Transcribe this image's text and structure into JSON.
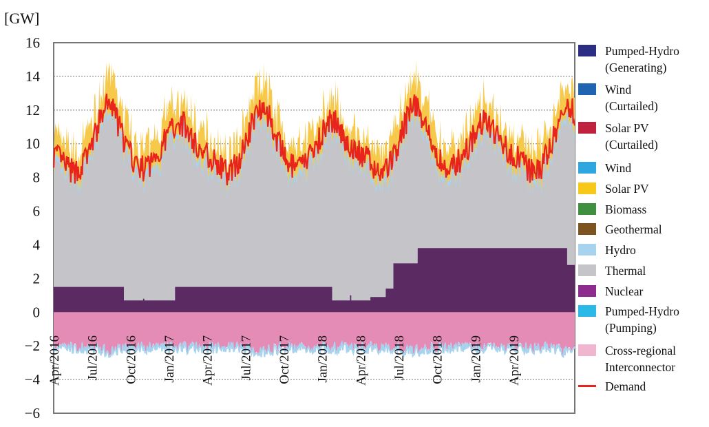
{
  "chart_data": {
    "type": "area",
    "unit_label": "[GW]",
    "ylim": [
      -6,
      16
    ],
    "y_ticks": [
      "16",
      "14",
      "12",
      "10",
      "8",
      "6",
      "4",
      "2",
      "0",
      "−2",
      "−4",
      "−6"
    ],
    "x_ticks": [
      "Apr/2016",
      "Jul/2016",
      "Oct/2016",
      "Jan/2017",
      "Apr/2017",
      "Jul/2017",
      "Oct/2017",
      "Jan/2018",
      "Apr/2018",
      "Jul/2018",
      "Oct/2018",
      "Jan/2019",
      "Apr/2019"
    ],
    "x_range_months": [
      0,
      40.8
    ],
    "series": [
      {
        "name": "Nuclear",
        "color": "#5b2a63",
        "steps": [
          [
            0,
            1.5
          ],
          [
            5.5,
            0.7
          ],
          [
            7.0,
            0.8
          ],
          [
            7.1,
            0.7
          ],
          [
            9.5,
            1.5
          ],
          [
            21.8,
            0.7
          ],
          [
            23.2,
            1.0
          ],
          [
            23.3,
            0.7
          ],
          [
            24.8,
            0.9
          ],
          [
            26.0,
            1.4
          ],
          [
            26.6,
            2.9
          ],
          [
            28.5,
            3.8
          ],
          [
            40.2,
            2.8
          ],
          [
            40.8,
            2.8
          ]
        ]
      },
      {
        "name": "Thermal",
        "color": "#c5c4c8",
        "approx_total_range_gw": [
          7.5,
          13.0
        ]
      },
      {
        "name": "Solar PV",
        "color": "#f6c94a",
        "approx_peak_gw": 1.5
      },
      {
        "name": "Cross-regional Interconnector",
        "color": "#e48cb5",
        "approx_range_gw": [
          -2.4,
          -1.6
        ]
      },
      {
        "name": "Demand",
        "color": "#e8241c",
        "type": "line",
        "approx_range_gw": [
          7.5,
          13.5
        ]
      }
    ],
    "seasonal_model": {
      "demand_base_gw": 9.4,
      "demand_summer_peak_gw": 12.3,
      "demand_winter_peak_gw": 11.3,
      "demand_trough_gw": 8.3
    },
    "legend": [
      {
        "label": "Pumped-Hydro\n(Generating)",
        "color": "#2b2e83",
        "kind": "box"
      },
      {
        "label": "Wind\n(Curtailed)",
        "color": "#1f64b0",
        "kind": "box"
      },
      {
        "label": "Solar PV\n(Curtailed)",
        "color": "#c0213f",
        "kind": "box"
      },
      {
        "label": "Wind",
        "color": "#2ea7e0",
        "kind": "box"
      },
      {
        "label": "Solar PV",
        "color": "#f7c81a",
        "kind": "box"
      },
      {
        "label": "Biomass",
        "color": "#3e8f3e",
        "kind": "box"
      },
      {
        "label": "Geothermal",
        "color": "#7d5320",
        "kind": "box"
      },
      {
        "label": "Hydro",
        "color": "#a8d3ef",
        "kind": "box"
      },
      {
        "label": "Thermal",
        "color": "#c5c4c8",
        "kind": "box"
      },
      {
        "label": "Nuclear",
        "color": "#8e2b8f",
        "kind": "box"
      },
      {
        "label": "Pumped-Hydro\n(Pumping)",
        "color": "#2bb9e8",
        "kind": "box"
      },
      {
        "label": "Cross-regional\nInterconnector",
        "color": "#f1b6cf",
        "kind": "box"
      },
      {
        "label": "Demand",
        "color": "#e8241c",
        "kind": "line"
      }
    ]
  }
}
